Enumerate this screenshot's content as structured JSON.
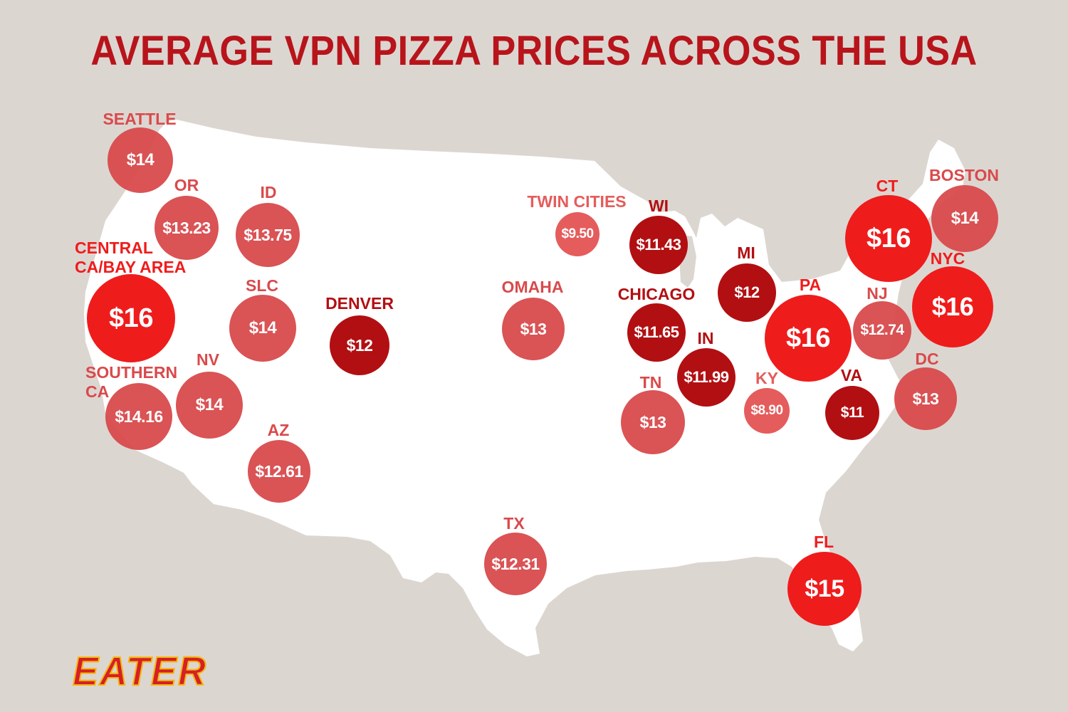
{
  "title": "AVERAGE VPN PIZZA PRICES ACROSS THE USA",
  "logo": "EATER",
  "colors": {
    "background": "#dcd6d1",
    "land": "#ffffff",
    "title": "#b8141b",
    "high": "#ef1c1c",
    "mid": "#d94a4c",
    "low": "#e55c5c",
    "dark": "#b20f12"
  },
  "locations": [
    {
      "id": "seattle",
      "name": "SEATTLE",
      "price": "$14",
      "tier": "mid"
    },
    {
      "id": "or",
      "name": "OR",
      "price": "$13.23",
      "tier": "mid"
    },
    {
      "id": "id",
      "name": "ID",
      "price": "$13.75",
      "tier": "mid"
    },
    {
      "id": "central-ca",
      "name": "CENTRAL\nCA/BAY AREA",
      "price": "$16",
      "tier": "high"
    },
    {
      "id": "slc",
      "name": "SLC",
      "price": "$14",
      "tier": "mid"
    },
    {
      "id": "denver",
      "name": "DENVER",
      "price": "$12",
      "tier": "dark"
    },
    {
      "id": "southern-ca",
      "name": "SOUTHERN\nCA",
      "price": "$14.16",
      "tier": "mid"
    },
    {
      "id": "nv",
      "name": "NV",
      "price": "$14",
      "tier": "mid"
    },
    {
      "id": "az",
      "name": "AZ",
      "price": "$12.61",
      "tier": "mid"
    },
    {
      "id": "twin-cities",
      "name": "TWIN CITIES",
      "price": "$9.50",
      "tier": "low"
    },
    {
      "id": "omaha",
      "name": "OMAHA",
      "price": "$13",
      "tier": "mid"
    },
    {
      "id": "tx",
      "name": "TX",
      "price": "$12.31",
      "tier": "mid"
    },
    {
      "id": "wi",
      "name": "WI",
      "price": "$11.43",
      "tier": "dark"
    },
    {
      "id": "chicago",
      "name": "CHICAGO",
      "price": "$11.65",
      "tier": "dark"
    },
    {
      "id": "mi",
      "name": "MI",
      "price": "$12",
      "tier": "dark"
    },
    {
      "id": "in",
      "name": "IN",
      "price": "$11.99",
      "tier": "dark"
    },
    {
      "id": "tn",
      "name": "TN",
      "price": "$13",
      "tier": "mid"
    },
    {
      "id": "ky",
      "name": "KY",
      "price": "$8.90",
      "tier": "low"
    },
    {
      "id": "pa",
      "name": "PA",
      "price": "$16",
      "tier": "high"
    },
    {
      "id": "va",
      "name": "VA",
      "price": "$11",
      "tier": "dark"
    },
    {
      "id": "ct",
      "name": "CT",
      "price": "$16",
      "tier": "high"
    },
    {
      "id": "boston",
      "name": "BOSTON",
      "price": "$14",
      "tier": "mid"
    },
    {
      "id": "nyc",
      "name": "NYC",
      "price": "$16",
      "tier": "high"
    },
    {
      "id": "nj",
      "name": "NJ",
      "price": "$12.74",
      "tier": "mid"
    },
    {
      "id": "dc",
      "name": "DC",
      "price": "$13",
      "tier": "mid"
    },
    {
      "id": "fl",
      "name": "FL",
      "price": "$15",
      "tier": "high"
    }
  ]
}
